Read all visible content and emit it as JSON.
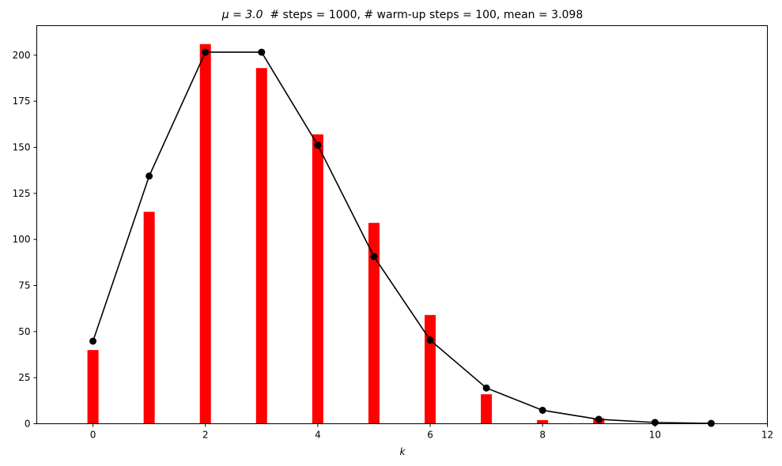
{
  "chart_data": {
    "type": "bar",
    "title": {
      "prefix": "μ = 3.0",
      "rest": "  # steps = 1000, # warm-up steps = 100, mean = 3.098"
    },
    "xlabel": "k",
    "ylabel": "",
    "xlim": [
      -1,
      12
    ],
    "ylim": [
      0,
      216
    ],
    "xticks": [
      0,
      2,
      4,
      6,
      8,
      10,
      12
    ],
    "yticks": [
      0,
      25,
      50,
      75,
      100,
      125,
      150,
      175,
      200
    ],
    "grid": false,
    "legend": "none",
    "series": [
      {
        "kind": "bar",
        "color": "#ff0000",
        "x": [
          0,
          1,
          2,
          3,
          4,
          5,
          6,
          7,
          8,
          9
        ],
        "values": [
          40,
          115,
          206,
          193,
          157,
          109,
          59,
          16,
          2,
          3
        ]
      },
      {
        "kind": "line",
        "color": "#000000",
        "x": [
          0,
          1,
          2,
          3,
          4,
          5,
          6,
          7,
          8,
          9,
          10,
          11
        ],
        "values": [
          44.8,
          134.4,
          201.6,
          201.6,
          151.2,
          90.7,
          45.4,
          19.4,
          7.3,
          2.4,
          0.7,
          0.2
        ]
      }
    ]
  }
}
